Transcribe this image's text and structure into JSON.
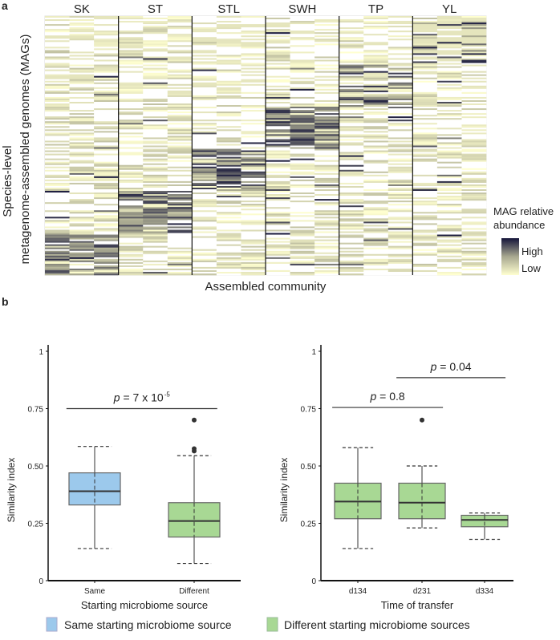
{
  "panel_labels": {
    "a": "a",
    "b": "b"
  },
  "chart_data": [
    {
      "type": "heatmap",
      "title": "",
      "xlabel": "Assembled community",
      "ylabel_line1": "Species-level",
      "ylabel_line2": "metagenome-assembled genomes (MAGs)",
      "groups": [
        "SK",
        "ST",
        "STL",
        "SWH",
        "TP",
        "YL"
      ],
      "replicates_per_group": 3,
      "row_count": 160,
      "legend": {
        "title_line1": "MAG relative",
        "title_line2": "abundance",
        "high": "High",
        "low": "Low"
      },
      "colors": {
        "low": "#ffffd0",
        "mid": "#a8a890",
        "high": "#15153a"
      }
    },
    {
      "type": "box",
      "xlabel": "Starting microbiome source",
      "ylabel": "Similarity index",
      "ylim": [
        0,
        1
      ],
      "yticks": [
        "0",
        "0.25",
        "0.50",
        "0.75",
        "1"
      ],
      "ytick_values": [
        0,
        0.25,
        0.5,
        0.75,
        1
      ],
      "categories": [
        "Same",
        "Different"
      ],
      "boxes": [
        {
          "name": "Same",
          "whisker_low": 0.14,
          "q1": 0.33,
          "median": 0.39,
          "q3": 0.47,
          "whisker_high": 0.585,
          "outliers": [],
          "color": "#9cc9ec"
        },
        {
          "name": "Different",
          "whisker_low": 0.075,
          "q1": 0.19,
          "median": 0.26,
          "q3": 0.34,
          "whisker_high": 0.545,
          "outliers": [
            0.565,
            0.575,
            0.7
          ],
          "color": "#a8d894"
        }
      ],
      "annotations": [
        {
          "from": 0,
          "to": 1,
          "y": 0.75,
          "text_p": "p",
          "text_rest": " = 7 x 10",
          "sup": "-5"
        }
      ]
    },
    {
      "type": "box",
      "xlabel": "Time of transfer",
      "ylabel": "Similarity index",
      "ylim": [
        0,
        1
      ],
      "yticks": [
        "0",
        "0.25",
        "0.50",
        "0.75",
        "1"
      ],
      "ytick_values": [
        0,
        0.25,
        0.5,
        0.75,
        1
      ],
      "categories": [
        "d134",
        "d231",
        "d334"
      ],
      "boxes": [
        {
          "name": "d134",
          "whisker_low": 0.14,
          "q1": 0.27,
          "median": 0.345,
          "q3": 0.425,
          "whisker_high": 0.58,
          "outliers": [],
          "color": "#a8d894"
        },
        {
          "name": "d231",
          "whisker_low": 0.23,
          "q1": 0.27,
          "median": 0.34,
          "q3": 0.425,
          "whisker_high": 0.5,
          "outliers": [
            0.7
          ],
          "color": "#a8d894"
        },
        {
          "name": "d334",
          "whisker_low": 0.18,
          "q1": 0.235,
          "median": 0.265,
          "q3": 0.285,
          "whisker_high": 0.295,
          "outliers": [],
          "color": "#a8d894"
        }
      ],
      "annotations": [
        {
          "from": 0,
          "to": 1,
          "y": 0.755,
          "text_p": "p",
          "text_rest": " = 0.8",
          "sup": ""
        },
        {
          "from": 1,
          "to": 2,
          "y": 0.885,
          "text_p": "p",
          "text_rest": " = 0.04",
          "sup": ""
        }
      ]
    }
  ],
  "legend": [
    {
      "label": "Same starting microbiome source",
      "color": "#9cc9ec"
    },
    {
      "label": "Different starting microbiome sources",
      "color": "#a8d894"
    }
  ]
}
